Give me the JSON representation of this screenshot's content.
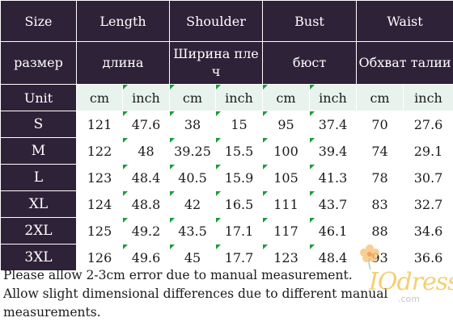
{
  "header": {
    "row1": [
      "Size",
      "Length",
      "Shoulder",
      "Bust",
      "Waist"
    ],
    "row2": [
      "размер",
      "длина",
      "Ширина пле ч",
      "бюст",
      "Обхват талии"
    ]
  },
  "unit_row": {
    "label": "Unit",
    "units": [
      "cm",
      "inch",
      "cm",
      "inch",
      "cm",
      "inch",
      "cm",
      "inch"
    ]
  },
  "rows": [
    {
      "size": "S",
      "values": [
        "121",
        "47.6",
        "38",
        "15",
        "95",
        "37.4",
        "70",
        "27.6"
      ]
    },
    {
      "size": "M",
      "values": [
        "122",
        "48",
        "39.25",
        "15.5",
        "100",
        "39.4",
        "74",
        "29.1"
      ]
    },
    {
      "size": "L",
      "values": [
        "123",
        "48.4",
        "40.5",
        "15.9",
        "105",
        "41.3",
        "78",
        "30.7"
      ]
    },
    {
      "size": "XL",
      "values": [
        "124",
        "48.8",
        "42",
        "16.5",
        "111",
        "43.7",
        "83",
        "32.7"
      ]
    },
    {
      "size": "2XL",
      "values": [
        "125",
        "49.2",
        "43.5",
        "17.1",
        "117",
        "46.1",
        "88",
        "34.6"
      ]
    },
    {
      "size": "3XL",
      "values": [
        "126",
        "49.6",
        "45",
        "17.7",
        "123",
        "48.4",
        "93",
        "36.6"
      ]
    }
  ],
  "notes": [
    "Please allow 2-3cm error due to manual measurement.",
    "Allow slight dimensional differences due to different manual",
    "measurements."
  ],
  "watermark": {
    "brand": "IOdress",
    "domain": ".com"
  },
  "colors": {
    "header_bg": "#2e2238",
    "unit_row_bg": "#e8f3ee",
    "corner_mark": "#1e9a3c"
  }
}
